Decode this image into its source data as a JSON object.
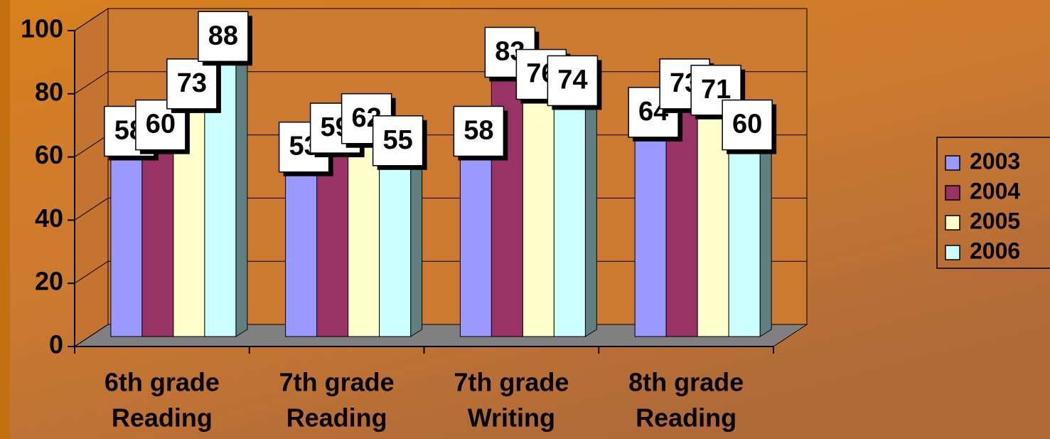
{
  "chart_data": {
    "type": "bar3d",
    "categories": [
      [
        "6th grade",
        "Reading"
      ],
      [
        "7th grade",
        "Reading"
      ],
      [
        "7th grade",
        "Writing"
      ],
      [
        "8th grade",
        "Reading"
      ]
    ],
    "series": [
      {
        "name": "2003",
        "color": "#9999ff",
        "values": [
          58,
          53,
          58,
          64
        ]
      },
      {
        "name": "2004",
        "color": "#993366",
        "values": [
          60,
          59,
          83,
          73
        ]
      },
      {
        "name": "2005",
        "color": "#ffffcc",
        "values": [
          73,
          62,
          76,
          71
        ]
      },
      {
        "name": "2006",
        "color": "#ccffff",
        "values": [
          88,
          55,
          74,
          60
        ]
      }
    ],
    "ylim": [
      0,
      100
    ],
    "yticks": [
      0,
      20,
      40,
      60,
      80,
      100
    ],
    "grid": true,
    "legend": "right"
  }
}
